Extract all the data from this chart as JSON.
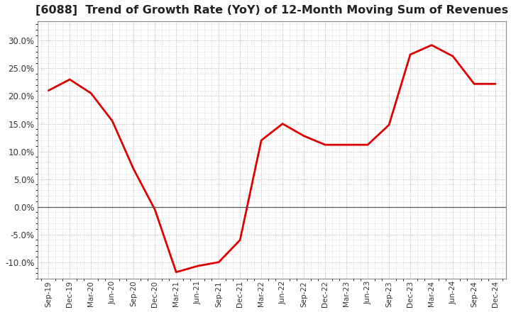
{
  "title": "[6088]  Trend of Growth Rate (YoY) of 12-Month Moving Sum of Revenues",
  "title_fontsize": 11.5,
  "line_color": "#dd0000",
  "line_width": 2.0,
  "background_color": "#ffffff",
  "plot_bg_color": "#ffffff",
  "grid_color": "#999999",
  "ylim": [
    -0.13,
    0.335
  ],
  "yticks": [
    -0.1,
    -0.05,
    0.0,
    0.05,
    0.1,
    0.15,
    0.2,
    0.25,
    0.3
  ],
  "x_labels": [
    "Sep-19",
    "Dec-19",
    "Mar-20",
    "Jun-20",
    "Sep-20",
    "Dec-20",
    "Mar-21",
    "Jun-21",
    "Sep-21",
    "Dec-21",
    "Mar-22",
    "Jun-22",
    "Sep-22",
    "Dec-22",
    "Mar-23",
    "Jun-23",
    "Sep-23",
    "Dec-23",
    "Mar-24",
    "Jun-24",
    "Sep-24",
    "Dec-24"
  ],
  "y_values": [
    0.21,
    0.23,
    0.205,
    0.155,
    0.068,
    -0.005,
    -0.118,
    -0.107,
    -0.1,
    -0.06,
    0.12,
    0.15,
    0.128,
    0.112,
    0.112,
    0.112,
    0.148,
    0.275,
    0.292,
    0.272,
    0.222,
    0.222
  ]
}
